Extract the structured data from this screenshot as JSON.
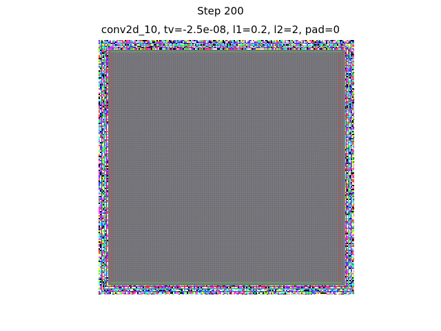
{
  "figure": {
    "suptitle": "Step 200",
    "axes_title": "conv2d_10, tv=-2.5e-08, l1=0.2, l2=2, pad=0"
  },
  "visualization": {
    "kind": "filter-activation-image",
    "interior_colors": [
      "#6f6f77",
      "#8a7f86",
      "#7d8a80",
      "#5f6a6f"
    ],
    "border_colors": [
      "#ff40ff",
      "#40ffff",
      "#ffff40",
      "#40ff40",
      "#4040ff",
      "#ff4040",
      "#000000",
      "#ffffff"
    ]
  }
}
